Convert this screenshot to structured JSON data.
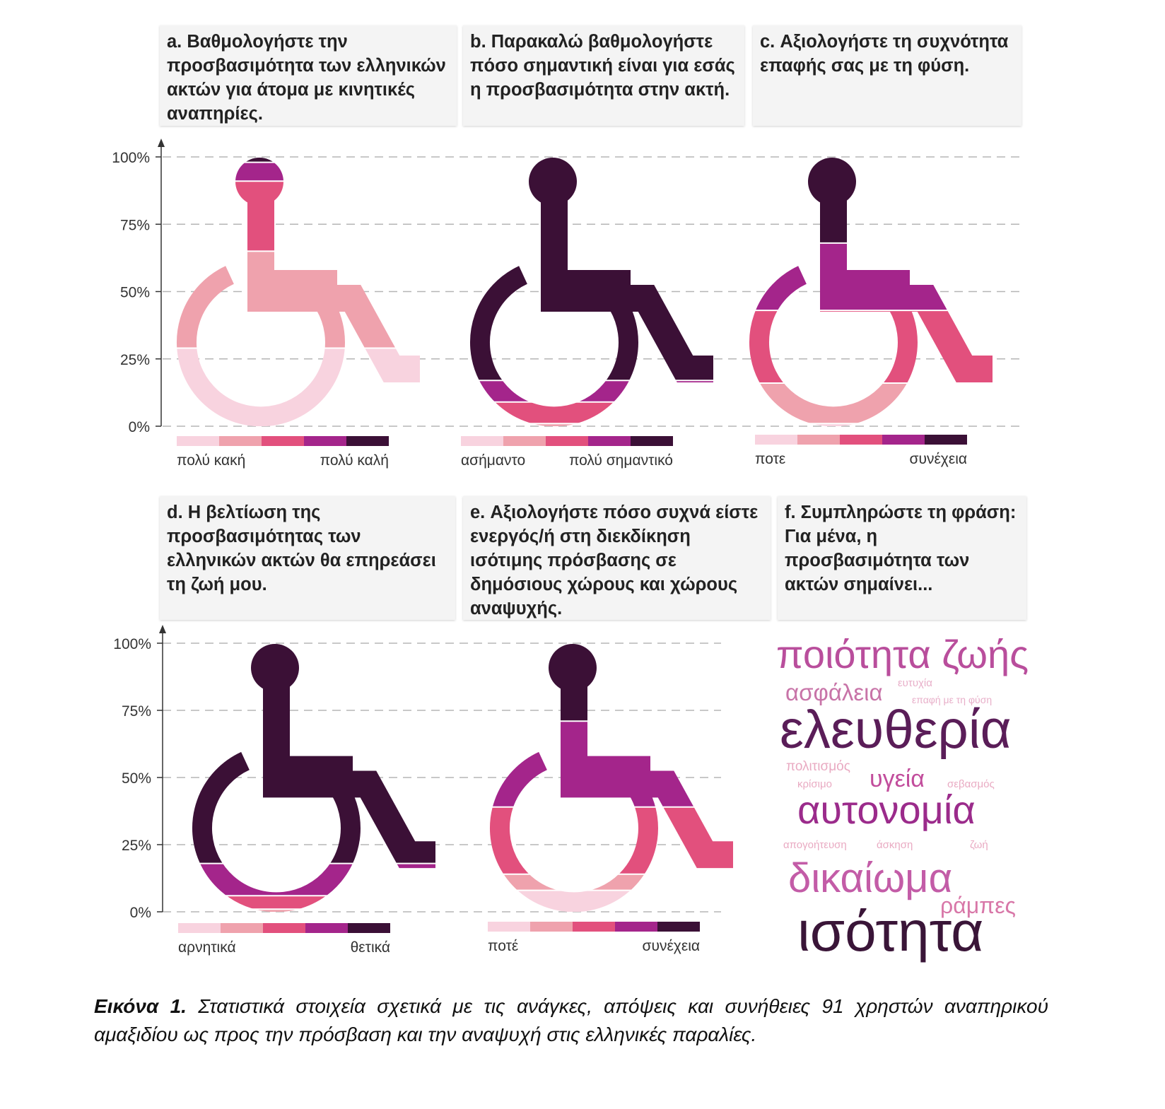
{
  "chart_data": [
    {
      "type": "bar",
      "stacked": true,
      "title": "a. Βαθμολογήστε την προσβασιμότητα των ελληνικών ακτών για άτομα με κινητικές αναπηρίες.",
      "values": [
        29,
        36,
        26,
        7,
        2
      ],
      "colors": [
        "#f8d3df",
        "#efa2ad",
        "#e2507d",
        "#a4258b",
        "#3b1036"
      ],
      "legend_labels": [
        "πολύ κακή",
        "πολύ καλή"
      ],
      "ylim": [
        0,
        100
      ],
      "yticks": [
        {
          "value": 0,
          "label": "0%"
        },
        {
          "value": 25,
          "label": "25%"
        },
        {
          "value": 50,
          "label": "50%"
        },
        {
          "value": 75,
          "label": "75%"
        },
        {
          "value": 100,
          "label": "100%"
        }
      ],
      "grid": true
    },
    {
      "type": "bar",
      "stacked": true,
      "title": "b. Παρακαλώ βαθμολογήστε πόσο σημαντική είναι για εσάς η προσβασιμότητα στην ακτή.",
      "values": [
        0,
        1,
        8,
        8,
        83
      ],
      "colors": [
        "#f8d3df",
        "#efa2ad",
        "#e2507d",
        "#a4258b",
        "#3b1036"
      ],
      "legend_labels": [
        "ασήμαντο",
        "πολύ σημαντικό"
      ],
      "ylim": [
        0,
        100
      ]
    },
    {
      "type": "bar",
      "stacked": true,
      "title": "c. Αξιολογήστε τη συχνότητα επαφής σας με τη φύση.",
      "values": [
        1,
        15,
        27,
        25,
        32
      ],
      "colors": [
        "#f8d3df",
        "#efa2ad",
        "#e2507d",
        "#a4258b",
        "#3b1036"
      ],
      "legend_labels": [
        "ποτε",
        "συνέχεια"
      ],
      "ylim": [
        0,
        100
      ]
    },
    {
      "type": "bar",
      "stacked": true,
      "title": "d. Η βελτίωση της προσβασιμότητας των ελληνικών ακτών θα επηρεάσει τη ζωή μου.",
      "values": [
        0,
        1,
        5,
        12,
        82
      ],
      "colors": [
        "#f8d3df",
        "#efa2ad",
        "#e2507d",
        "#a4258b",
        "#3b1036"
      ],
      "legend_labels": [
        "αρνητικά",
        "θετικά"
      ],
      "ylim": [
        0,
        100
      ],
      "yticks": [
        {
          "value": 0,
          "label": "0%"
        },
        {
          "value": 25,
          "label": "25%"
        },
        {
          "value": 50,
          "label": "50%"
        },
        {
          "value": 75,
          "label": "75%"
        },
        {
          "value": 100,
          "label": "100%"
        }
      ],
      "grid": true
    },
    {
      "type": "bar",
      "stacked": true,
      "title": "e. Αξιολογήστε πόσο συχνά είστε ενεργός/ή στη διεκδίκηση ισότιμης πρόσβασης σε δημόσιους χώρους και χώρους αναψυχής.",
      "values": [
        8,
        6,
        25,
        32,
        29
      ],
      "colors": [
        "#f8d3df",
        "#efa2ad",
        "#e2507d",
        "#a4258b",
        "#3b1036"
      ],
      "legend_labels": [
        "ποτέ",
        "συνέχεια"
      ],
      "ylim": [
        0,
        100
      ]
    },
    {
      "type": "wordcloud",
      "title": "f. Συμπληρώστε τη φράση: Για μένα, η προσβασιμότητα των ακτών σημαίνει...",
      "words": [
        {
          "text": "ποιότητα ζωής",
          "color": "#b94e9c"
        },
        {
          "text": "ευτυχία",
          "color": "#e8afc9"
        },
        {
          "text": "ασφάλεια",
          "color": "#c874a8"
        },
        {
          "text": "επαφή με τη φύση",
          "color": "#e8afc9"
        },
        {
          "text": "ελευθερία",
          "color": "#5a1d58"
        },
        {
          "text": "πολιτισμός",
          "color": "#e9aac2"
        },
        {
          "text": "κρίσιμο",
          "color": "#e9aac2"
        },
        {
          "text": "υγεία",
          "color": "#c24d9c"
        },
        {
          "text": "σεβασμός",
          "color": "#e9aac2"
        },
        {
          "text": "αυτονομία",
          "color": "#9b2b8b"
        },
        {
          "text": "απογοήτευση",
          "color": "#e9aac2"
        },
        {
          "text": "άσκηση",
          "color": "#e9aac2"
        },
        {
          "text": "ζωή",
          "color": "#e9aac2"
        },
        {
          "text": "δικαίωμα",
          "color": "#c35ca7"
        },
        {
          "text": "ράμπες",
          "color": "#d877a8"
        },
        {
          "text": "ισότητα",
          "color": "#3a1538"
        }
      ]
    }
  ],
  "caption": {
    "label": "Εικόνα 1.",
    "text": "Στατιστικά στοιχεία σχετικά με τις ανάγκες, απόψεις και συνήθειες 91 χρηστών αναπηρικού αμαξιδίου ως προς την πρόσβαση και την αναψυχή στις ελληνικές παραλίες."
  }
}
